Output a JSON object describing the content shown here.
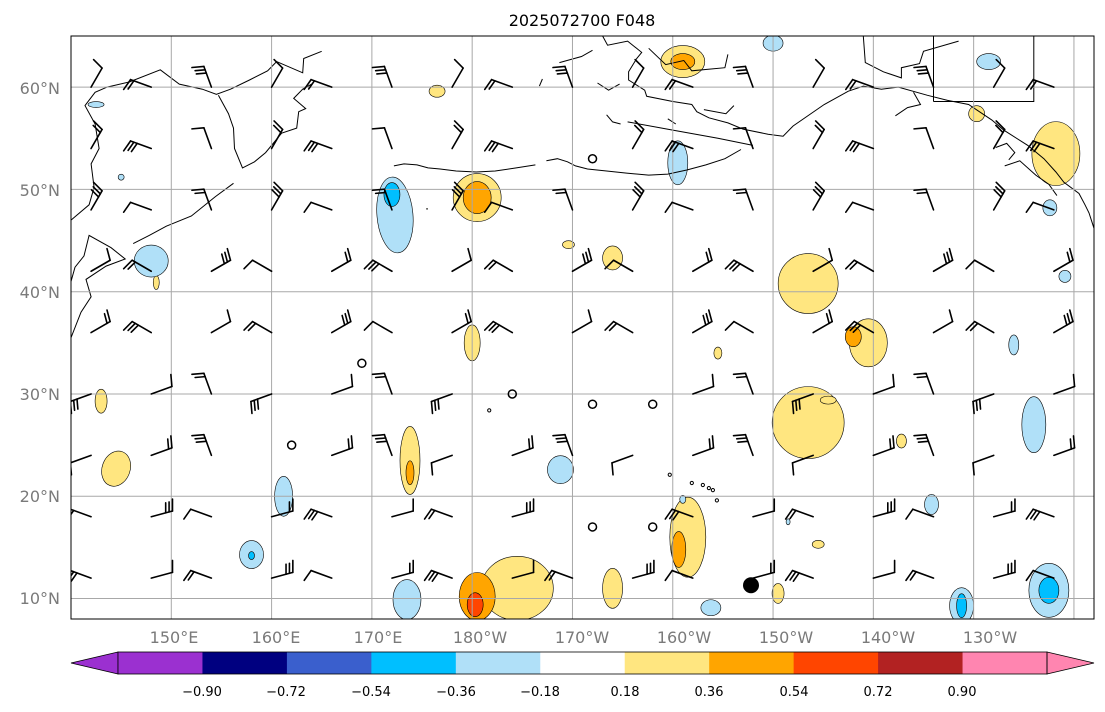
{
  "title": "2025072700 F048",
  "map": {
    "lon_range": [
      140,
      242
    ],
    "lat_range": [
      8,
      65
    ],
    "gridlines": true,
    "lat_labels": [
      "60°N",
      "50°N",
      "40°N",
      "30°N",
      "20°N",
      "10°N"
    ],
    "lon_labels": [
      "150°E",
      "160°E",
      "170°E",
      "180°W",
      "170°W",
      "160°W",
      "150°W",
      "140°W",
      "130°W"
    ],
    "storm_marker": {
      "lon": 207.8,
      "lat": 11.3
    }
  },
  "colorbar": {
    "tick_labels": [
      "−0.90",
      "−0.72",
      "−0.54",
      "−0.36",
      "−0.18",
      "0.18",
      "0.36",
      "0.54",
      "0.72",
      "0.90"
    ],
    "colors": [
      "#9b30d0",
      "#000080",
      "#3a5fcd",
      "#00bfff",
      "#b0e0f8",
      "#ffffff",
      "#ffe680",
      "#ffa500",
      "#ff4500",
      "#b22222",
      "#ff85b0"
    ],
    "extend": "both"
  },
  "colors": {
    "pos_weak": "#ffe680",
    "pos_mid": "#ffa500",
    "pos_strong": "#ff4500",
    "neg_weak": "#b0e0f8",
    "neg_mid": "#00bfff",
    "grid": "#a8a8a8",
    "coast": "#000000"
  }
}
